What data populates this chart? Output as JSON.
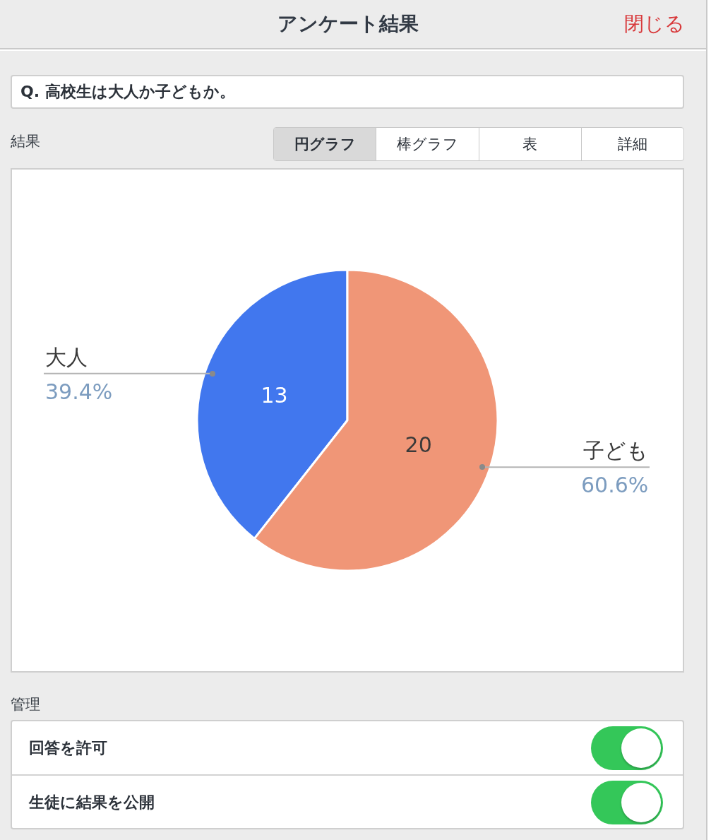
{
  "chart_data": {
    "type": "pie",
    "title": "アンケート結果",
    "subtitle": "Q. 高校生は大人か子どもか。",
    "categories": [
      "大人",
      "子ども"
    ],
    "values": [
      13,
      20
    ],
    "colors": [
      "#4177ee",
      "#f09677"
    ],
    "data_labels": true,
    "annotations": [
      "閉じる",
      "結果",
      "円グラフ",
      "棒グラフ",
      "表",
      "詳細",
      "管理",
      "回答を許可",
      "生徒に結果を公開",
      {
        "text": "39.4%",
        "x": "大人"
      },
      {
        "text": "60.6%",
        "x": "子ども"
      }
    ]
  }
}
